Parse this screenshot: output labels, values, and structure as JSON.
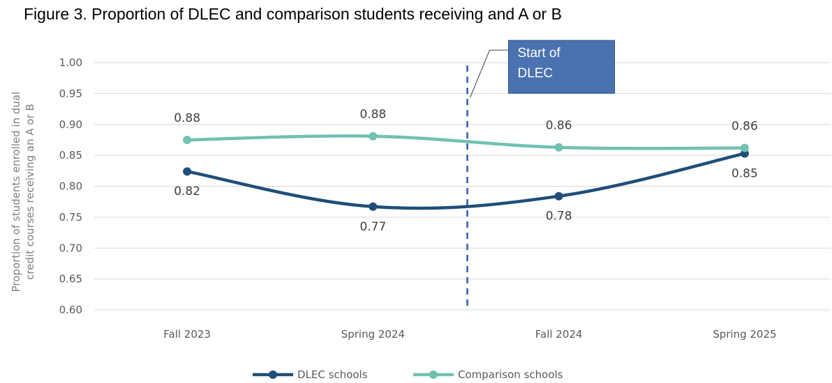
{
  "chart_data": {
    "type": "line",
    "title": "Figure 3. Proportion of DLEC and comparison students receiving and A or B",
    "ylabel": "Proportion of students enrolled in dual credit courses receiving an A or B",
    "xlabel": "",
    "categories": [
      "Fall 2023",
      "Spring 2024",
      "Fall 2024",
      "Spring 2025"
    ],
    "ylim": [
      0.6,
      1.0
    ],
    "yticks": [
      "0.60",
      "0.65",
      "0.70",
      "0.75",
      "0.80",
      "0.85",
      "0.90",
      "0.95",
      "1.00"
    ],
    "grid": true,
    "legend_position": "bottom",
    "series": [
      {
        "name": "DLEC schools",
        "color": "#1f4e79",
        "values": [
          0.824,
          0.767,
          0.784,
          0.853
        ],
        "labels": [
          "0.82",
          "0.77",
          "0.78",
          "0.85"
        ]
      },
      {
        "name": "Comparison schools",
        "color": "#70c1b0",
        "values": [
          0.875,
          0.881,
          0.863,
          0.862
        ],
        "labels": [
          "0.88",
          "0.88",
          "0.86",
          "0.86"
        ]
      }
    ],
    "annotation": {
      "text_lines": [
        "Start of",
        "DLEC"
      ],
      "bg_color": "#4a72b0",
      "line_color": "#2e5aa8"
    }
  }
}
